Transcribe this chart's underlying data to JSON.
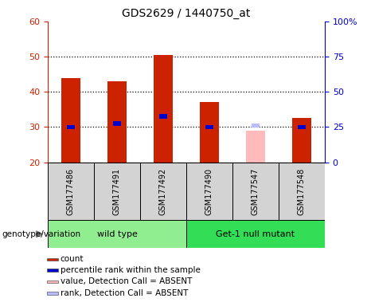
{
  "title": "GDS2629 / 1440750_at",
  "samples": [
    "GSM177486",
    "GSM177491",
    "GSM177492",
    "GSM177490",
    "GSM177547",
    "GSM177548"
  ],
  "groups": [
    {
      "label": "wild type",
      "indices": [
        0,
        1,
        2
      ],
      "color": "#90EE90"
    },
    {
      "label": "Get-1 null mutant",
      "indices": [
        3,
        4,
        5
      ],
      "color": "#33DD55"
    }
  ],
  "count_values": [
    44,
    43,
    50.5,
    37,
    null,
    32.5
  ],
  "percentile_values": [
    30,
    31,
    33,
    30,
    null,
    30
  ],
  "absent_value": [
    null,
    null,
    null,
    null,
    29,
    null
  ],
  "absent_rank": [
    null,
    null,
    null,
    null,
    29,
    null
  ],
  "ylim_left": [
    20,
    60
  ],
  "ylim_right": [
    0,
    100
  ],
  "yticks_left": [
    20,
    30,
    40,
    50,
    60
  ],
  "yticks_right": [
    0,
    25,
    50,
    75,
    100
  ],
  "ytick_labels_right": [
    "0",
    "25",
    "50",
    "75",
    "100%"
  ],
  "bar_width": 0.4,
  "count_color": "#CC2200",
  "percentile_color": "#0000CC",
  "absent_value_color": "#FFBBBB",
  "absent_rank_color": "#BBBBFF",
  "group_label_text": "genotype/variation",
  "legend_items": [
    {
      "color": "#CC2200",
      "label": "count"
    },
    {
      "color": "#0000CC",
      "label": "percentile rank within the sample"
    },
    {
      "color": "#FFBBBB",
      "label": "value, Detection Call = ABSENT"
    },
    {
      "color": "#BBBBFF",
      "label": "rank, Detection Call = ABSENT"
    }
  ],
  "plot_bg_color": "#ffffff",
  "sample_bg_color": "#d3d3d3",
  "left_axis_color": "#CC2200",
  "right_axis_color": "#0000CC",
  "grid_dotted_ticks": [
    30,
    40,
    50
  ]
}
